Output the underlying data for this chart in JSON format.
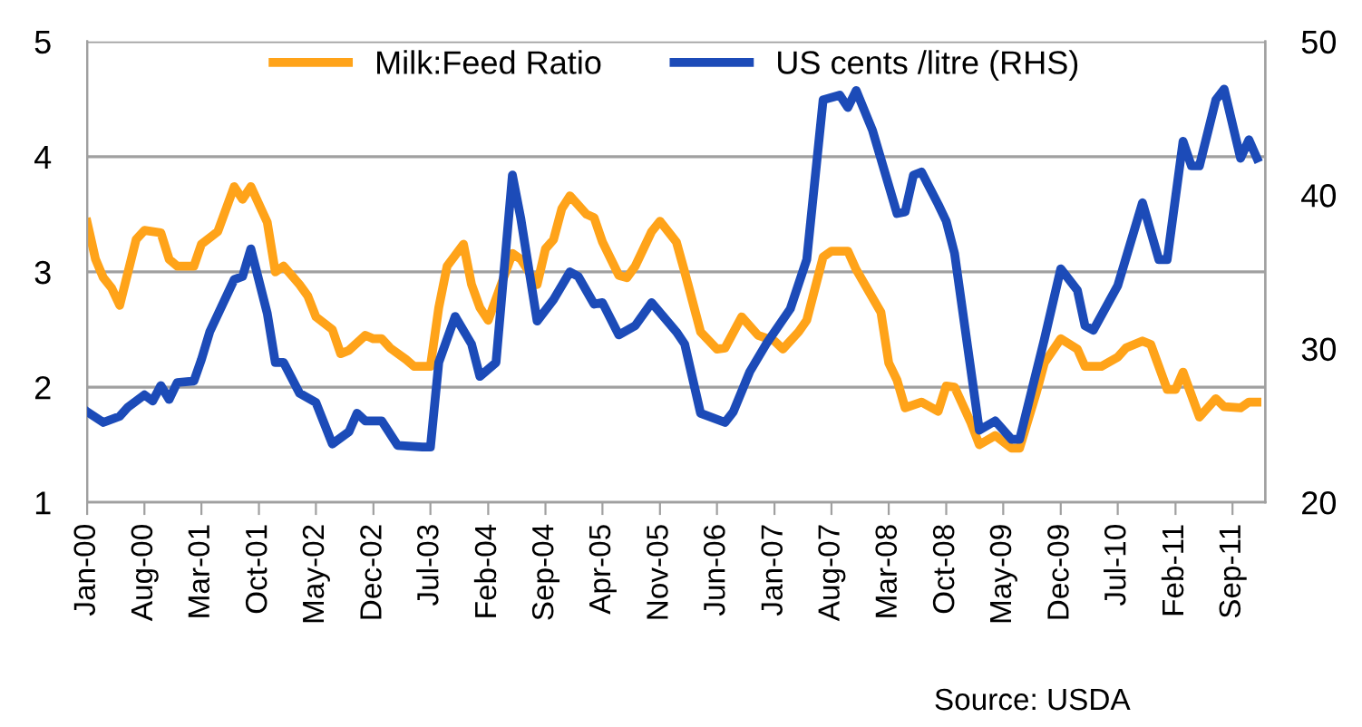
{
  "chart_data": {
    "type": "line",
    "annotations": [
      "Source: USDA"
    ],
    "xlim": [
      "2000-01",
      "2012-01"
    ],
    "xticks": [
      {
        "value": "2000-01",
        "label": "Jan-00"
      },
      {
        "value": "2000-08",
        "label": "Aug-00"
      },
      {
        "value": "2001-03",
        "label": "Mar-01"
      },
      {
        "value": "2001-10",
        "label": "Oct-01"
      },
      {
        "value": "2002-05",
        "label": "May-02"
      },
      {
        "value": "2002-12",
        "label": "Dec-02"
      },
      {
        "value": "2003-07",
        "label": "Jul-03"
      },
      {
        "value": "2004-02",
        "label": "Feb-04"
      },
      {
        "value": "2004-09",
        "label": "Sep-04"
      },
      {
        "value": "2005-04",
        "label": "Apr-05"
      },
      {
        "value": "2005-11",
        "label": "Nov-05"
      },
      {
        "value": "2006-06",
        "label": "Jun-06"
      },
      {
        "value": "2007-01",
        "label": "Jan-07"
      },
      {
        "value": "2007-08",
        "label": "Aug-07"
      },
      {
        "value": "2008-03",
        "label": "Mar-08"
      },
      {
        "value": "2008-10",
        "label": "Oct-08"
      },
      {
        "value": "2009-05",
        "label": "May-09"
      },
      {
        "value": "2009-12",
        "label": "Dec-09"
      },
      {
        "value": "2010-07",
        "label": "Jul-10"
      },
      {
        "value": "2011-02",
        "label": "Feb-11"
      },
      {
        "value": "2011-09",
        "label": "Sep-11"
      }
    ],
    "ylim": [
      1,
      5
    ],
    "yticks": [
      1,
      2,
      3,
      4,
      5
    ],
    "y2lim": [
      20,
      50
    ],
    "y2ticks": [
      20,
      30,
      40,
      50
    ],
    "grid": "y",
    "legend": "top",
    "line_style": "solid",
    "marker": "none",
    "series": [
      {
        "name": "Milk:Feed Ratio",
        "color": "#ffa319",
        "x": [
          "2000-01",
          "2000-02",
          "2000-03",
          "2000-04",
          "2000-05",
          "2000-07",
          "2000-08",
          "2000-10",
          "2000-11",
          "2000-12",
          "2001-02",
          "2001-03",
          "2001-05",
          "2001-07",
          "2001-08",
          "2001-09",
          "2001-11",
          "2001-12",
          "2002-01",
          "2002-03",
          "2002-04",
          "2002-05",
          "2002-07",
          "2002-08",
          "2002-09",
          "2002-11",
          "2002-12",
          "2003-01",
          "2003-02",
          "2003-04",
          "2003-05",
          "2003-07",
          "2003-08",
          "2003-09",
          "2003-11",
          "2003-12",
          "2004-01",
          "2004-02",
          "2004-05",
          "2004-06",
          "2004-08",
          "2004-09",
          "2004-10",
          "2004-11",
          "2004-12",
          "2005-02",
          "2005-03",
          "2005-04",
          "2005-06",
          "2005-07",
          "2005-08",
          "2005-10",
          "2005-11",
          "2006-01",
          "2006-02",
          "2006-04",
          "2006-06",
          "2006-07",
          "2006-09",
          "2006-11",
          "2007-01",
          "2007-02",
          "2007-04",
          "2007-05",
          "2007-07",
          "2007-08",
          "2007-10",
          "2007-11",
          "2008-02",
          "2008-03",
          "2008-04",
          "2008-05",
          "2008-07",
          "2008-09",
          "2008-10",
          "2008-11",
          "2009-01",
          "2009-02",
          "2009-04",
          "2009-06",
          "2009-07",
          "2009-09",
          "2009-10",
          "2009-12",
          "2010-02",
          "2010-03",
          "2010-05",
          "2010-07",
          "2010-08",
          "2010-10",
          "2010-11",
          "2011-01",
          "2011-02",
          "2011-03",
          "2011-05",
          "2011-07",
          "2011-08",
          "2011-10",
          "2011-11",
          "2011-12"
        ],
        "values": [
          3.43,
          3.11,
          2.95,
          2.86,
          2.71,
          3.28,
          3.36,
          3.34,
          3.11,
          3.05,
          3.05,
          3.24,
          3.35,
          3.74,
          3.63,
          3.74,
          3.43,
          3.0,
          3.05,
          2.89,
          2.79,
          2.61,
          2.5,
          2.29,
          2.32,
          2.45,
          2.42,
          2.42,
          2.34,
          2.24,
          2.18,
          2.18,
          2.69,
          3.05,
          3.24,
          2.89,
          2.69,
          2.58,
          3.16,
          3.11,
          2.89,
          3.2,
          3.28,
          3.55,
          3.66,
          3.5,
          3.47,
          3.26,
          2.97,
          2.95,
          3.05,
          3.35,
          3.44,
          3.26,
          3.0,
          2.48,
          2.33,
          2.34,
          2.61,
          2.45,
          2.4,
          2.33,
          2.48,
          2.58,
          3.13,
          3.18,
          3.18,
          3.02,
          2.65,
          2.21,
          2.06,
          1.82,
          1.87,
          1.79,
          2.01,
          2.0,
          1.69,
          1.5,
          1.58,
          1.47,
          1.47,
          1.95,
          2.21,
          2.42,
          2.33,
          2.18,
          2.18,
          2.26,
          2.34,
          2.4,
          2.37,
          1.98,
          1.98,
          2.13,
          1.74,
          1.9,
          1.83,
          1.82,
          1.87,
          1.87
        ]
      },
      {
        "name": "US cents /litre (RHS)",
        "color": "#1c4bb8",
        "axis": "y2",
        "x": [
          "2000-01",
          "2000-03",
          "2000-05",
          "2000-06",
          "2000-08",
          "2000-09",
          "2000-10",
          "2000-11",
          "2000-12",
          "2001-02",
          "2001-03",
          "2001-04",
          "2001-07",
          "2001-08",
          "2001-09",
          "2001-11",
          "2001-12",
          "2002-01",
          "2002-03",
          "2002-05",
          "2002-07",
          "2002-09",
          "2002-10",
          "2002-11",
          "2003-01",
          "2003-03",
          "2003-06",
          "2003-07",
          "2003-08",
          "2003-10",
          "2003-12",
          "2004-01",
          "2004-03",
          "2004-05",
          "2004-06",
          "2004-08",
          "2004-10",
          "2004-12",
          "2005-01",
          "2005-03",
          "2005-04",
          "2005-06",
          "2005-08",
          "2005-10",
          "2006-01",
          "2006-02",
          "2006-04",
          "2006-07",
          "2006-08",
          "2006-10",
          "2006-12",
          "2007-03",
          "2007-05",
          "2007-07",
          "2007-09",
          "2007-10",
          "2007-11",
          "2008-01",
          "2008-04",
          "2008-05",
          "2008-06",
          "2008-07",
          "2008-09",
          "2008-10",
          "2008-11",
          "2009-02",
          "2009-04",
          "2009-06",
          "2009-07",
          "2009-10",
          "2009-12",
          "2010-02",
          "2010-03",
          "2010-04",
          "2010-07",
          "2010-10",
          "2010-12",
          "2011-01",
          "2011-03",
          "2011-04",
          "2011-05",
          "2011-07",
          "2011-08",
          "2011-10",
          "2011-11",
          "2011-12"
        ],
        "values": [
          25.9,
          25.2,
          25.6,
          26.2,
          27.0,
          26.6,
          27.6,
          26.7,
          27.8,
          27.9,
          29.3,
          31.1,
          34.5,
          34.7,
          36.5,
          32.3,
          29.1,
          29.1,
          27.1,
          26.5,
          23.8,
          24.6,
          25.8,
          25.3,
          25.3,
          23.7,
          23.6,
          23.6,
          29.1,
          32.1,
          30.3,
          28.2,
          29.1,
          41.3,
          38.5,
          31.8,
          33.2,
          35.0,
          34.7,
          32.9,
          33.0,
          30.9,
          31.5,
          33.0,
          31.1,
          30.3,
          25.8,
          25.2,
          25.9,
          28.5,
          30.3,
          32.6,
          35.8,
          46.2,
          46.5,
          45.7,
          46.8,
          44.2,
          38.8,
          38.9,
          41.3,
          41.5,
          39.4,
          38.3,
          36.2,
          24.7,
          25.3,
          24.1,
          24.1,
          30.6,
          35.2,
          33.8,
          31.5,
          31.2,
          34.1,
          39.5,
          35.8,
          35.8,
          43.5,
          41.9,
          41.9,
          46.2,
          46.9,
          42.4,
          43.6,
          42.4
        ]
      }
    ]
  }
}
